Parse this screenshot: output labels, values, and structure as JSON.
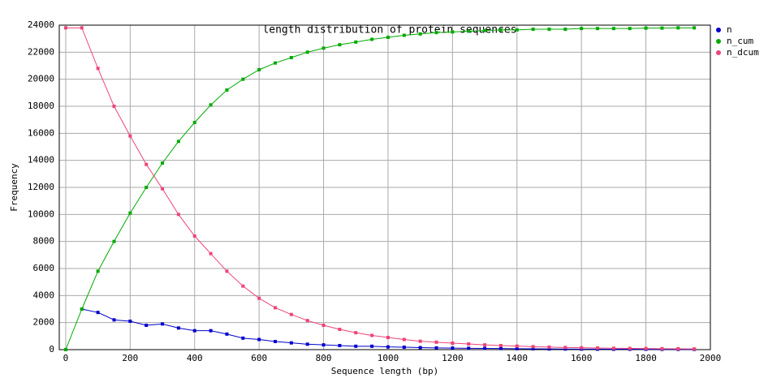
{
  "chart_data": {
    "type": "line",
    "title": "length distribution of protein sequences",
    "x_label": "Sequence length (bp)",
    "y_label": "Frequency",
    "x": [
      0,
      50,
      100,
      150,
      200,
      250,
      300,
      350,
      400,
      450,
      500,
      550,
      600,
      650,
      700,
      750,
      800,
      850,
      900,
      950,
      1000,
      1050,
      1100,
      1150,
      1200,
      1250,
      1300,
      1350,
      1400,
      1450,
      1500,
      1550,
      1600,
      1650,
      1700,
      1750,
      1800,
      1850,
      1900,
      1950
    ],
    "series": [
      {
        "name": "n",
        "color": "#0000cc",
        "values": [
          null,
          3000,
          2750,
          2200,
          2100,
          1800,
          1900,
          1600,
          1400,
          1400,
          1150,
          850,
          750,
          600,
          500,
          400,
          350,
          300,
          250,
          250,
          200,
          180,
          150,
          130,
          110,
          100,
          90,
          80,
          70,
          60,
          50,
          45,
          40,
          35,
          30,
          28,
          25,
          22,
          20,
          18
        ]
      },
      {
        "name": "n_cum",
        "color": "#00aa00",
        "values": [
          0,
          3000,
          5800,
          8000,
          10100,
          12000,
          13800,
          15400,
          16800,
          18100,
          19200,
          20000,
          20700,
          21200,
          21600,
          22000,
          22300,
          22550,
          22750,
          22950,
          23100,
          23250,
          23350,
          23450,
          23500,
          23550,
          23600,
          23650,
          23650,
          23700,
          23700,
          23700,
          23750,
          23750,
          23750,
          23750,
          23780,
          23780,
          23800,
          23800
        ]
      },
      {
        "name": "n_dcum",
        "color": "#ee4477",
        "values": [
          23800,
          23800,
          20800,
          18000,
          15800,
          13700,
          11900,
          10000,
          8400,
          7100,
          5800,
          4700,
          3800,
          3100,
          2600,
          2150,
          1800,
          1500,
          1250,
          1050,
          900,
          750,
          620,
          550,
          480,
          420,
          350,
          300,
          260,
          220,
          190,
          160,
          140,
          120,
          100,
          90,
          80,
          70,
          60,
          50
        ]
      }
    ],
    "xlim": [
      -20,
      2000
    ],
    "ylim": [
      0,
      24000
    ],
    "xticks": [
      0,
      200,
      400,
      600,
      800,
      1000,
      1200,
      1400,
      1600,
      1800,
      2000
    ],
    "yticks": [
      0,
      2000,
      4000,
      6000,
      8000,
      10000,
      12000,
      14000,
      16000,
      18000,
      20000,
      22000,
      24000
    ],
    "grid": true,
    "legend": "right"
  }
}
